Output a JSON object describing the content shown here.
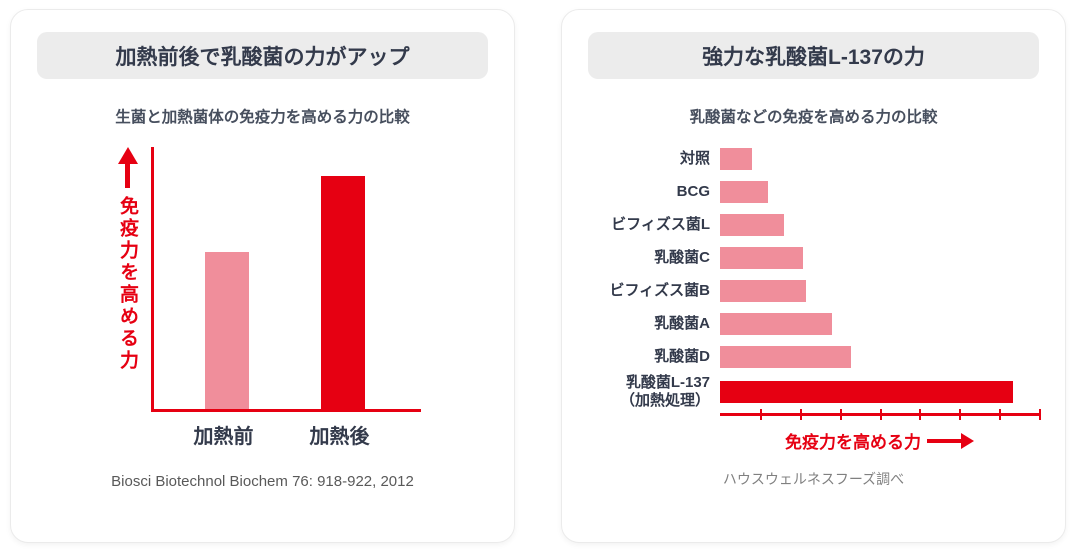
{
  "colors": {
    "accent_red": "#e60012",
    "bar_pink": "#f08e9b",
    "header_bg": "#ececec",
    "title_color": "#333a4b",
    "citation_gray": "#595959"
  },
  "left_panel": {
    "header": "加熱前後で乳酸菌の力がアップ",
    "citation": "Biosci Biotechnol Biochem 76: 918-922, 2012"
  },
  "right_panel": {
    "header": "強力な乳酸菌L-137の力",
    "footer": "ハウスウェルネスフーズ調べ"
  },
  "chart_data": [
    {
      "type": "bar",
      "title": "生菌と加熱菌体の免疫力を高める力の比較",
      "categories": [
        "加熱前",
        "加熱後"
      ],
      "values": [
        60,
        89
      ],
      "ylabel": "免疫力を高める力",
      "ylim": [
        0,
        100
      ],
      "bar_colors": [
        "#f08e9b",
        "#e60012"
      ],
      "grid": false,
      "legend": "none"
    },
    {
      "type": "bar-horizontal",
      "title": "乳酸菌などの免疫を高める力の比較",
      "categories": [
        "対照",
        "BCG",
        "ビフィズス菌L",
        "乳酸菌C",
        "ビフィズス菌B",
        "乳酸菌A",
        "乳酸菌D",
        "乳酸菌L-137（加熱処理）"
      ],
      "category_lines": [
        [
          "対照"
        ],
        [
          "BCG"
        ],
        [
          "ビフィズス菌L"
        ],
        [
          "乳酸菌C"
        ],
        [
          "ビフィズス菌B"
        ],
        [
          "乳酸菌A"
        ],
        [
          "乳酸菌D"
        ],
        [
          "乳酸菌L-137",
          "（加熱処理）"
        ]
      ],
      "values": [
        10,
        15,
        20,
        26,
        27,
        35,
        41,
        92
      ],
      "xlabel": "免疫力を高める力",
      "xlim": [
        0,
        100
      ],
      "bar_color": "#f08e9b",
      "highlight_index": 7,
      "highlight_color": "#e60012",
      "grid": false,
      "legend": "none"
    }
  ]
}
